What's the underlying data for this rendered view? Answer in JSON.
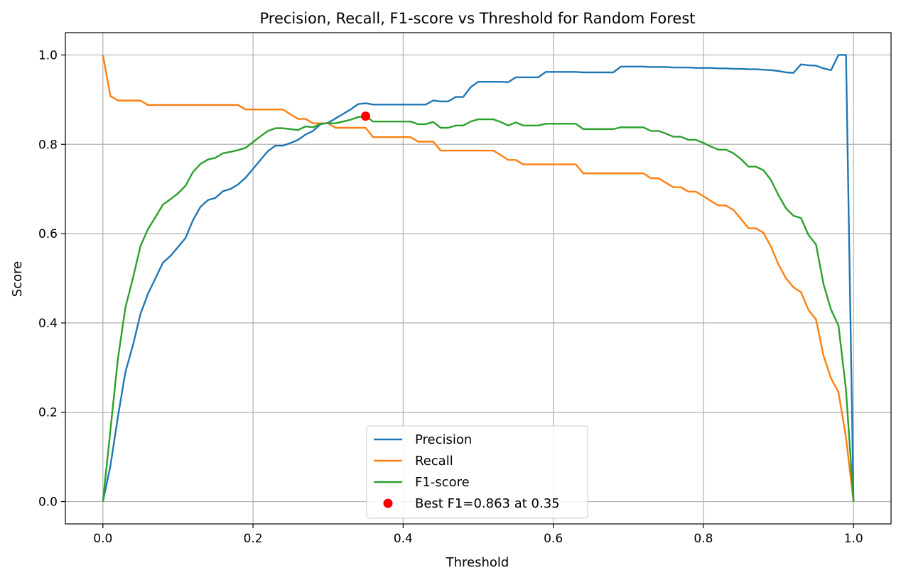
{
  "chart_data": {
    "type": "line",
    "title": "Precision, Recall, F1-score vs Threshold for Random Forest",
    "xlabel": "Threshold",
    "ylabel": "Score",
    "xlim": [
      -0.05,
      1.05
    ],
    "ylim": [
      -0.05,
      1.05
    ],
    "grid": true,
    "legend_position": "lower center",
    "xticks": [
      "0.0",
      "0.2",
      "0.4",
      "0.6",
      "0.8",
      "1.0"
    ],
    "yticks": [
      "0.0",
      "0.2",
      "0.4",
      "0.6",
      "0.8",
      "1.0"
    ],
    "x": [
      0.0,
      0.01,
      0.02,
      0.03,
      0.04,
      0.05,
      0.06,
      0.07,
      0.08,
      0.09,
      0.1,
      0.11,
      0.12,
      0.13,
      0.14,
      0.15,
      0.16,
      0.17,
      0.18,
      0.19,
      0.2,
      0.21,
      0.22,
      0.23,
      0.24,
      0.25,
      0.26,
      0.27,
      0.28,
      0.29,
      0.3,
      0.31,
      0.32,
      0.33,
      0.34,
      0.35,
      0.36,
      0.37,
      0.38,
      0.39,
      0.4,
      0.41,
      0.42,
      0.43,
      0.44,
      0.45,
      0.46,
      0.47,
      0.48,
      0.49,
      0.5,
      0.51,
      0.52,
      0.53,
      0.54,
      0.55,
      0.56,
      0.57,
      0.58,
      0.59,
      0.6,
      0.61,
      0.62,
      0.63,
      0.64,
      0.65,
      0.66,
      0.67,
      0.68,
      0.69,
      0.7,
      0.71,
      0.72,
      0.73,
      0.74,
      0.75,
      0.76,
      0.77,
      0.78,
      0.79,
      0.8,
      0.81,
      0.82,
      0.83,
      0.84,
      0.85,
      0.86,
      0.87,
      0.88,
      0.89,
      0.9,
      0.91,
      0.92,
      0.93,
      0.94,
      0.95,
      0.96,
      0.97,
      0.98,
      0.99,
      1.0
    ],
    "series": [
      {
        "name": "Precision",
        "color": "#1f77b4",
        "values": [
          0.0,
          0.08,
          0.19,
          0.29,
          0.35,
          0.42,
          0.465,
          0.5,
          0.535,
          0.55,
          0.57,
          0.59,
          0.63,
          0.66,
          0.675,
          0.68,
          0.695,
          0.7,
          0.71,
          0.725,
          0.745,
          0.765,
          0.785,
          0.797,
          0.797,
          0.803,
          0.81,
          0.822,
          0.83,
          0.845,
          0.848,
          0.858,
          0.868,
          0.878,
          0.89,
          0.892,
          0.889,
          0.889,
          0.889,
          0.889,
          0.889,
          0.889,
          0.889,
          0.889,
          0.898,
          0.896,
          0.896,
          0.906,
          0.906,
          0.928,
          0.94,
          0.94,
          0.94,
          0.94,
          0.939,
          0.95,
          0.95,
          0.95,
          0.95,
          0.962,
          0.962,
          0.962,
          0.962,
          0.962,
          0.961,
          0.961,
          0.961,
          0.961,
          0.961,
          0.974,
          0.974,
          0.974,
          0.974,
          0.973,
          0.973,
          0.973,
          0.972,
          0.972,
          0.972,
          0.971,
          0.971,
          0.971,
          0.97,
          0.97,
          0.969,
          0.969,
          0.968,
          0.968,
          0.967,
          0.966,
          0.964,
          0.961,
          0.96,
          0.979,
          0.977,
          0.976,
          0.97,
          0.966,
          1.0,
          1.0,
          0.0
        ]
      },
      {
        "name": "Recall",
        "color": "#ff7f0e",
        "values": [
          1.0,
          0.908,
          0.898,
          0.898,
          0.898,
          0.898,
          0.888,
          0.888,
          0.888,
          0.888,
          0.888,
          0.888,
          0.888,
          0.888,
          0.888,
          0.888,
          0.888,
          0.888,
          0.888,
          0.878,
          0.878,
          0.878,
          0.878,
          0.878,
          0.878,
          0.867,
          0.857,
          0.857,
          0.847,
          0.847,
          0.847,
          0.837,
          0.837,
          0.837,
          0.837,
          0.837,
          0.816,
          0.816,
          0.816,
          0.816,
          0.816,
          0.816,
          0.806,
          0.806,
          0.806,
          0.786,
          0.786,
          0.786,
          0.786,
          0.786,
          0.786,
          0.786,
          0.786,
          0.776,
          0.765,
          0.765,
          0.755,
          0.755,
          0.755,
          0.755,
          0.755,
          0.755,
          0.755,
          0.755,
          0.735,
          0.735,
          0.735,
          0.735,
          0.735,
          0.735,
          0.735,
          0.735,
          0.735,
          0.724,
          0.724,
          0.714,
          0.704,
          0.704,
          0.694,
          0.694,
          0.684,
          0.673,
          0.663,
          0.663,
          0.653,
          0.633,
          0.612,
          0.612,
          0.602,
          0.571,
          0.531,
          0.5,
          0.48,
          0.469,
          0.429,
          0.408,
          0.327,
          0.276,
          0.245,
          0.143,
          0.0
        ]
      },
      {
        "name": "F1-score",
        "color": "#2ca02c",
        "values": [
          0.0,
          0.16,
          0.32,
          0.435,
          0.5,
          0.572,
          0.61,
          0.637,
          0.665,
          0.677,
          0.69,
          0.707,
          0.738,
          0.756,
          0.766,
          0.77,
          0.78,
          0.783,
          0.787,
          0.792,
          0.805,
          0.818,
          0.83,
          0.836,
          0.836,
          0.834,
          0.832,
          0.84,
          0.838,
          0.846,
          0.847,
          0.847,
          0.851,
          0.855,
          0.861,
          0.863,
          0.851,
          0.851,
          0.851,
          0.851,
          0.851,
          0.851,
          0.845,
          0.845,
          0.85,
          0.837,
          0.837,
          0.842,
          0.842,
          0.851,
          0.856,
          0.856,
          0.856,
          0.85,
          0.842,
          0.849,
          0.842,
          0.842,
          0.842,
          0.846,
          0.846,
          0.846,
          0.846,
          0.846,
          0.834,
          0.834,
          0.834,
          0.834,
          0.834,
          0.838,
          0.838,
          0.838,
          0.838,
          0.83,
          0.83,
          0.824,
          0.817,
          0.817,
          0.81,
          0.81,
          0.803,
          0.795,
          0.788,
          0.788,
          0.78,
          0.767,
          0.75,
          0.75,
          0.742,
          0.72,
          0.686,
          0.657,
          0.64,
          0.635,
          0.597,
          0.576,
          0.487,
          0.43,
          0.394,
          0.25,
          0.0
        ]
      }
    ],
    "marker": {
      "name": "Best F1=0.863 at 0.35",
      "x": 0.35,
      "y": 0.863,
      "color": "#ff0000"
    }
  }
}
